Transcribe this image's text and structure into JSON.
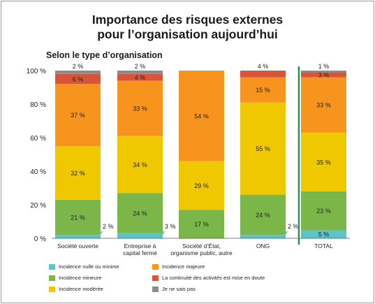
{
  "chart_data": {
    "type": "bar",
    "stacked": true,
    "title_lines": [
      "Importance des risques externes",
      "pour l’organisation aujourd’hui"
    ],
    "subtitle": "Selon le type d’organisation",
    "ylim": [
      0,
      100
    ],
    "y_ticks": [
      "0 %",
      "20 %",
      "40 %",
      "60 %",
      "80 %",
      "100 %"
    ],
    "y_tick_values": [
      0,
      20,
      40,
      60,
      80,
      100
    ],
    "categories": [
      [
        "Société ouverte"
      ],
      [
        "Entreprise à",
        "capital fermé"
      ],
      [
        "Société d’État,",
        "organisme public, autre"
      ],
      [
        "ONG"
      ],
      [
        "TOTAL"
      ]
    ],
    "series": [
      {
        "name": "Incidence nulle ou minime",
        "color": "#5bc3c9",
        "values": [
          2,
          3,
          0,
          2,
          5
        ]
      },
      {
        "name": "Incidence mineure",
        "color": "#7ab648",
        "values": [
          21,
          24,
          17,
          24,
          23
        ]
      },
      {
        "name": "Incidence modérée",
        "color": "#f0c800",
        "values": [
          32,
          34,
          29,
          55,
          35
        ]
      },
      {
        "name": "Incidence majeure",
        "color": "#f7941d",
        "values": [
          37,
          33,
          54,
          15,
          33
        ]
      },
      {
        "name": "La continuité des activités est mise en doute",
        "color": "#d9553a",
        "values": [
          6,
          4,
          0,
          4,
          3
        ]
      },
      {
        "name": "Je ne sais pas",
        "color": "#8c8c8c",
        "values": [
          2,
          2,
          0,
          0,
          1
        ]
      }
    ],
    "bar_labels": [
      [
        "2 %",
        "21 %",
        "32 %",
        "37 %",
        "6 %",
        "2 %"
      ],
      [
        "3 %",
        "24 %",
        "34 %",
        "33 %",
        "4 %",
        "2 %"
      ],
      [
        "",
        "17 %",
        "29 %",
        "54 %",
        "",
        ""
      ],
      [
        "2 %",
        "24 %",
        "55 %",
        "15 %",
        "4 %",
        ""
      ],
      [
        "5 %",
        "23 %",
        "35 %",
        "33 %",
        "3 %",
        "1 %"
      ]
    ],
    "separator_before_category": 4,
    "separator_color": "#1a9a50",
    "grid": false,
    "legend_position": "bottom"
  }
}
